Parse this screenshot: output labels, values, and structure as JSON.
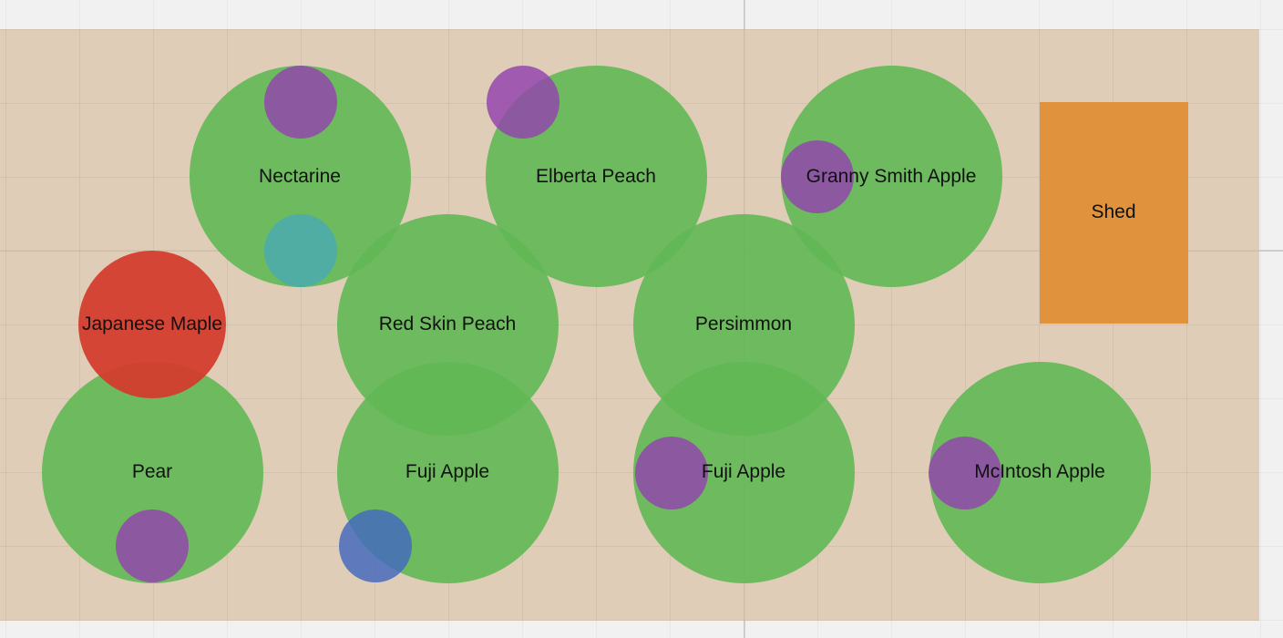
{
  "colors": {
    "tree": "#62b855",
    "maple": "#d43a2c",
    "shed": "#e18c30",
    "yard": "#dac3a8",
    "bush_purple": "#9242ae",
    "bush_teal": "#48aab2",
    "bush_blue": "#4268be"
  },
  "plants": {
    "nectarine": "Nectarine",
    "elberta_peach": "Elberta Peach",
    "granny_smith_apple": "Granny Smith Apple",
    "japanese_maple": "Japanese Maple",
    "red_skin_peach": "Red Skin Peach",
    "persimmon": "Persimmon",
    "pear": "Pear",
    "fuji_apple_1": "Fuji Apple",
    "fuji_apple_2": "Fuji Apple",
    "mcintosh_apple": "McIntosh Apple"
  },
  "structures": {
    "shed": "Shed"
  }
}
